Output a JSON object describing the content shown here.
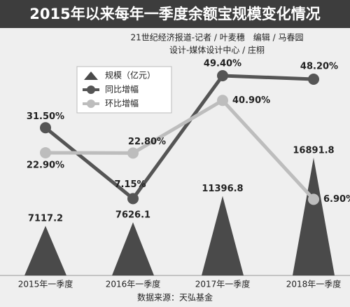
{
  "header": {
    "credits": [
      "21世纪经济报道-记者 / 叶麦穗　编辑 / 马春园",
      "设计-媒体设计中心 / 庄栩"
    ],
    "source": "数据来源：天弘基金"
  },
  "chart_data": {
    "type": "combo",
    "title": "2015年以来每年一季度余额宝规模变化情况",
    "categories": [
      "2015年一季度",
      "2016年一季度",
      "2017年一季度",
      "2018年一季度"
    ],
    "series": [
      {
        "name": "规模（亿元）",
        "type": "triangle",
        "color": "#4a4a4a",
        "values": [
          7117.2,
          7626.1,
          11396.8,
          16891.8
        ]
      },
      {
        "name": "同比增幅",
        "type": "line",
        "color": "#555555",
        "values": [
          31.5,
          7.15,
          49.4,
          48.2
        ],
        "value_labels": [
          "31.50%",
          "7.15%",
          "49.40%",
          "48.20%"
        ]
      },
      {
        "name": "环比增幅",
        "type": "line",
        "color": "#bdbdbd",
        "values": [
          22.9,
          22.8,
          40.9,
          6.9
        ],
        "value_labels": [
          "22.90%",
          "22.80%",
          "40.90%",
          "6.90%"
        ]
      }
    ]
  }
}
